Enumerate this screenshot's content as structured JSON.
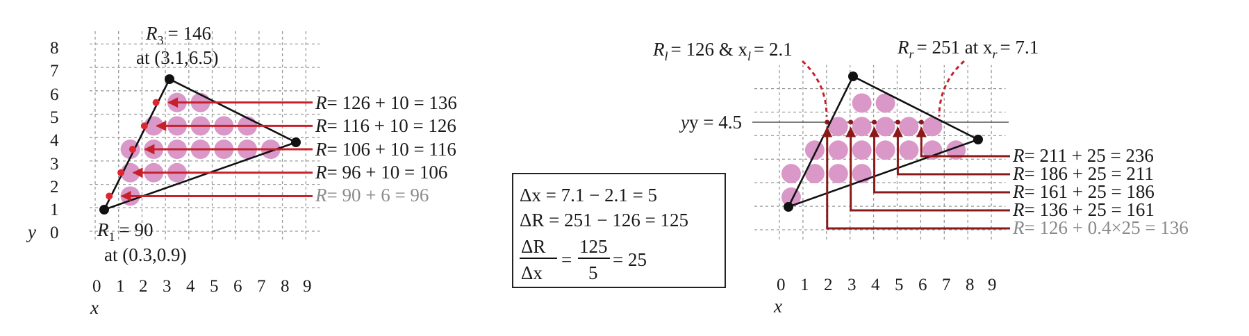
{
  "left_panel": {
    "y_axis_label": "y",
    "x_axis_label": "x",
    "y_ticks": [
      "0",
      "1",
      "2",
      "3",
      "4",
      "5",
      "6",
      "7",
      "8"
    ],
    "x_ticks": [
      "0",
      "1",
      "2",
      "3",
      "4",
      "5",
      "6",
      "7",
      "8",
      "9"
    ],
    "r3_value": "= 146",
    "r3_coords": "at (3.1,6.5)",
    "r1_value": "= 90",
    "r1_coords": "at (0.3,0.9)",
    "equations": [
      {
        "text": "= 126 + 10 = 136",
        "grey": false
      },
      {
        "text": "= 116 + 10 = 126",
        "grey": false
      },
      {
        "text": "= 106 + 10 = 116",
        "grey": false
      },
      {
        "text": "= 96 + 10 = 106",
        "grey": false
      },
      {
        "text": "= 90 + 6 = 96",
        "grey": true
      }
    ]
  },
  "middle_box": {
    "line1": "Δx = 7.1 − 2.1 = 5",
    "line2": "ΔR = 251 − 126 = 125",
    "frac1_num": "ΔR",
    "frac1_den": "Δx",
    "frac2_num": "125",
    "frac2_den": "5",
    "result": "= 25"
  },
  "right_panel": {
    "x_ticks": [
      "0",
      "1",
      "2",
      "3",
      "4",
      "5",
      "6",
      "7",
      "8",
      "9"
    ],
    "x_axis_label": "x",
    "y_line_label": "y = 4.5",
    "rl_text": "= 126 & x",
    "rl_value": "= 2.1",
    "rr_text": "= 251 at x",
    "rr_value": "= 7.1",
    "equations": [
      {
        "text": "= 211 + 25 = 236",
        "grey": false
      },
      {
        "text": "= 186 + 25 = 211",
        "grey": false
      },
      {
        "text": "= 161 + 25 = 186",
        "grey": false
      },
      {
        "text": "= 136 + 25 = 161",
        "grey": false
      },
      {
        "text": "= 126 + 0.4×25 = 136",
        "grey": true
      }
    ]
  },
  "colors": {
    "pixel": "#d998c8",
    "arrow_left": "#c8202a",
    "arrow_right": "#8a1a1a"
  }
}
